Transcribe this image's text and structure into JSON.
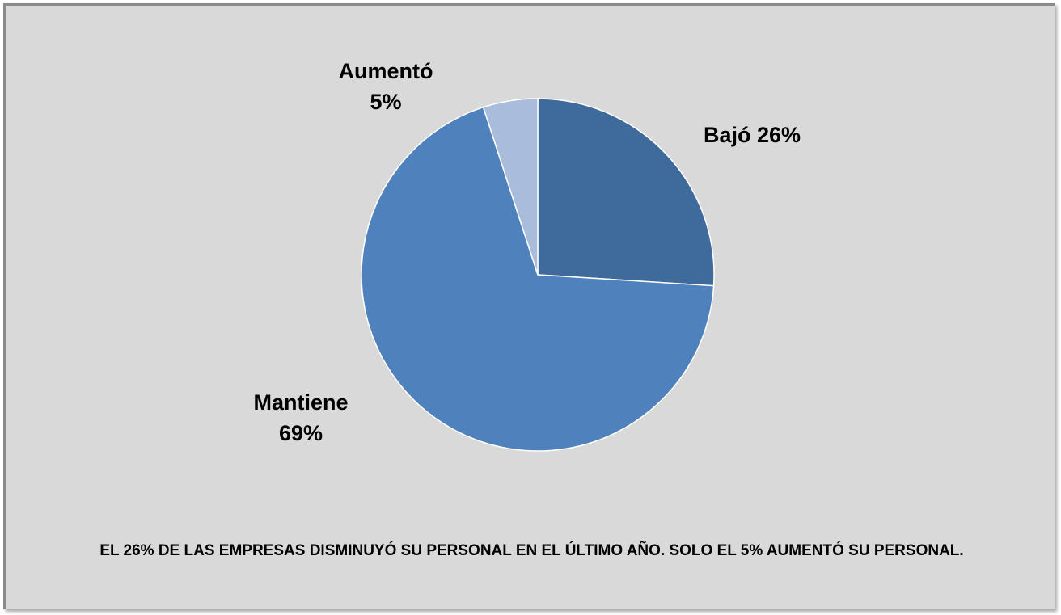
{
  "chart_data": {
    "type": "pie",
    "categories": [
      "Bajó",
      "Mantiene",
      "Aumentó"
    ],
    "values": [
      26,
      69,
      5
    ],
    "value_labels": [
      "26%",
      "69%",
      "5%"
    ],
    "colors": [
      "#3f6a9c",
      "#4f81bd",
      "#a9bcdb"
    ],
    "annotation": "EL 26% DE LAS EMPRESAS DISMINUYÓ SU PERSONAL EN EL ÚLTIMO AÑO. SOLO EL 5% AUMENTÓ SU PERSONAL."
  }
}
